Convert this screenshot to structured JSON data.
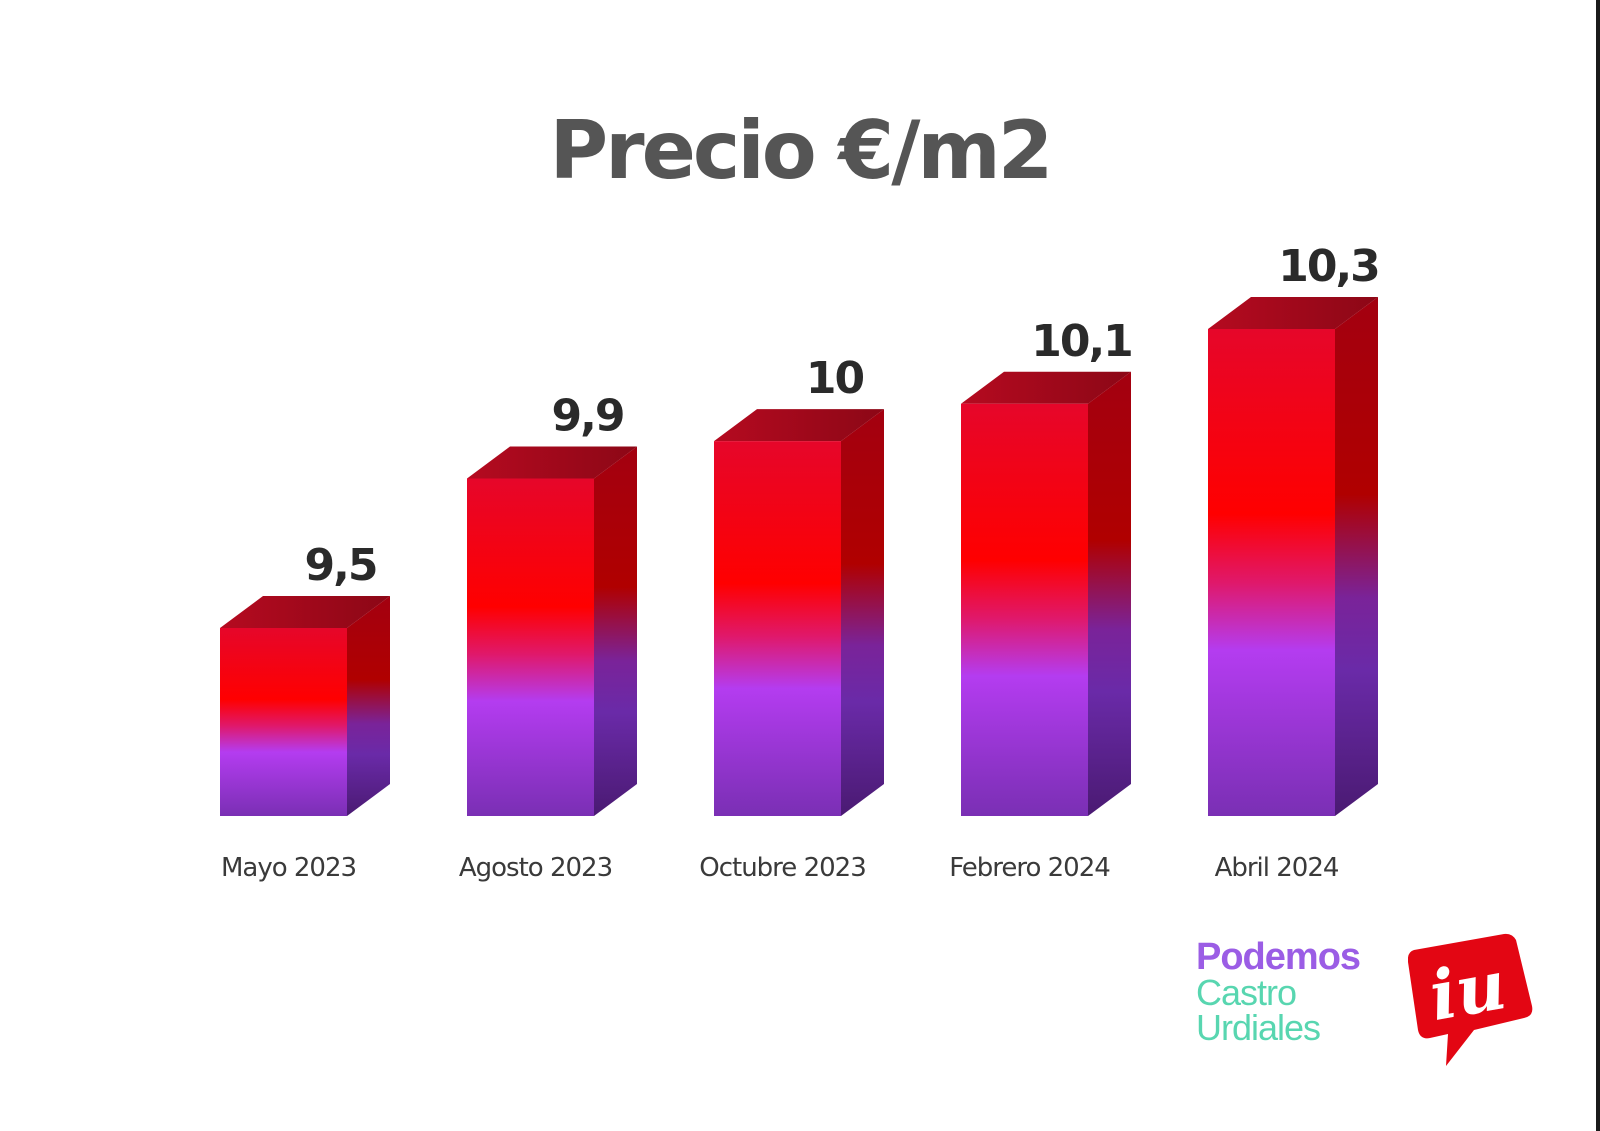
{
  "chart_data": {
    "type": "bar",
    "title": "Precio €/m2",
    "categories": [
      "Mayo 2023",
      "Agosto 2023",
      "Octubre 2023",
      "Febrero 2024",
      "Abril 2024"
    ],
    "values": [
      9.5,
      9.9,
      10.0,
      10.1,
      10.3
    ],
    "value_labels": [
      "9,5",
      "9,9",
      "10",
      "10,1",
      "10,3"
    ],
    "xlabel": "",
    "ylabel": "",
    "grid": false,
    "style": "3d-gradient-bars"
  },
  "colors": {
    "bar_top": "#e6062a",
    "bar_mid": "#ff0000",
    "bar_purple": "#b43cf0",
    "bar_bottom": "#7a2fb4",
    "bar_cap": "#a10a1c",
    "title": "#555555"
  },
  "logos": {
    "podemos": {
      "line1": "Podemos",
      "line2": "Castro",
      "line3": "Urdiales"
    },
    "iu": {
      "text": "iu"
    }
  }
}
